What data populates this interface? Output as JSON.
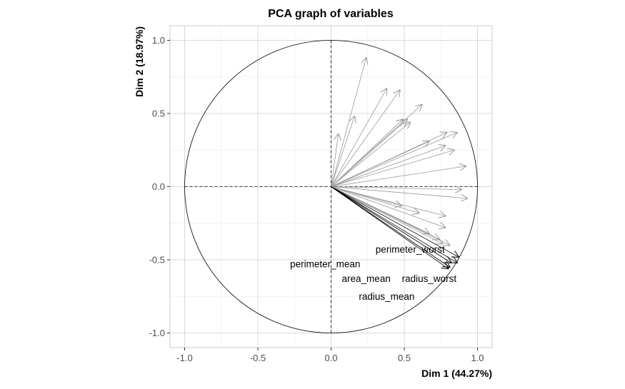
{
  "chart_data": {
    "type": "pca-variables",
    "title": "PCA graph of variables",
    "xlabel": "Dim 1 (44.27%)",
    "ylabel": "Dim 2 (18.97%)",
    "xlim": [
      -1.1,
      1.1
    ],
    "ylim": [
      -1.1,
      1.1
    ],
    "ticks": [
      -1.0,
      -0.5,
      0.0,
      0.5,
      1.0
    ],
    "tick_labels": [
      "-1.0",
      "-0.5",
      "0.0",
      "0.5",
      "1.0"
    ],
    "grid": true,
    "unit_circle": true,
    "colors": {
      "panel_border": "#cccccc",
      "grid_major": "#d9d9d9",
      "grid_minor": "#eeeeee",
      "arrow_light": "#999999",
      "arrow_dark": "#000000",
      "circle": "#000000",
      "text": "#000000",
      "tick_text": "#4d4d4d"
    },
    "highlighted": [
      {
        "name": "perimeter_worst",
        "x": 0.87,
        "y": -0.48,
        "label_x": 0.54,
        "label_y": -0.43
      },
      {
        "name": "perimeter_mean",
        "x": 0.82,
        "y": -0.52,
        "label_x": -0.04,
        "label_y": -0.53
      },
      {
        "name": "area_mean",
        "x": 0.8,
        "y": -0.56,
        "label_x": 0.24,
        "label_y": -0.63
      },
      {
        "name": "radius_worst",
        "x": 0.86,
        "y": -0.52,
        "label_x": 0.67,
        "label_y": -0.63
      },
      {
        "name": "radius_mean",
        "x": 0.81,
        "y": -0.55,
        "label_x": 0.38,
        "label_y": -0.75
      }
    ],
    "other_vectors": [
      {
        "x": 0.24,
        "y": 0.88
      },
      {
        "x": 0.16,
        "y": 0.48
      },
      {
        "x": 0.05,
        "y": 0.36
      },
      {
        "x": 0.38,
        "y": 0.67
      },
      {
        "x": 0.47,
        "y": 0.66
      },
      {
        "x": 0.62,
        "y": 0.56
      },
      {
        "x": 0.49,
        "y": 0.46
      },
      {
        "x": 0.52,
        "y": 0.46
      },
      {
        "x": 0.54,
        "y": 0.44
      },
      {
        "x": 0.67,
        "y": 0.31
      },
      {
        "x": 0.79,
        "y": 0.37
      },
      {
        "x": 0.86,
        "y": 0.37
      },
      {
        "x": 0.78,
        "y": 0.28
      },
      {
        "x": 0.84,
        "y": 0.25
      },
      {
        "x": 0.92,
        "y": 0.14
      },
      {
        "x": 0.89,
        "y": -0.02
      },
      {
        "x": 0.93,
        "y": -0.08
      },
      {
        "x": 0.48,
        "y": -0.13
      },
      {
        "x": 0.6,
        "y": -0.18
      },
      {
        "x": 0.78,
        "y": -0.2
      },
      {
        "x": 0.78,
        "y": -0.28
      },
      {
        "x": 0.67,
        "y": -0.32
      },
      {
        "x": 0.74,
        "y": -0.36
      },
      {
        "x": 0.81,
        "y": -0.4
      },
      {
        "x": 0.76,
        "y": -0.39
      }
    ]
  }
}
